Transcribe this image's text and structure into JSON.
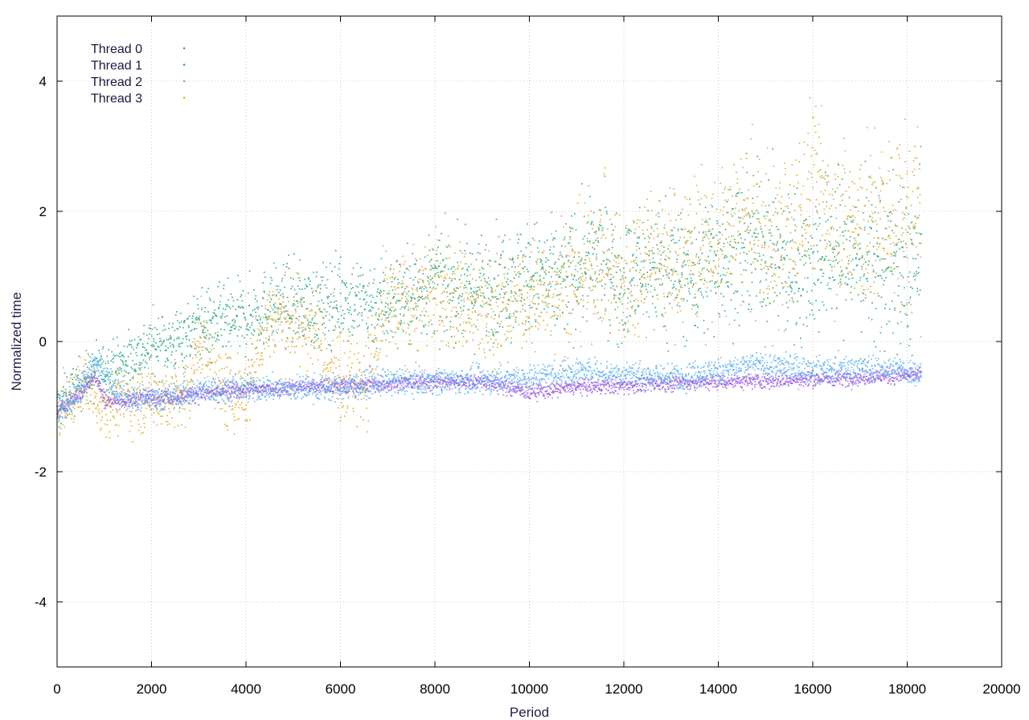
{
  "chart_data": {
    "type": "scatter",
    "title": "",
    "xlabel": "Period",
    "ylabel": "Normalized time",
    "xlim": [
      0,
      20000
    ],
    "ylim": [
      -5,
      5
    ],
    "x_ticks": [
      0,
      2000,
      4000,
      6000,
      8000,
      10000,
      12000,
      14000,
      16000,
      18000,
      20000
    ],
    "y_ticks": [
      -4,
      -2,
      0,
      2,
      4
    ],
    "grid": true,
    "legend_position": "top-left",
    "x_extent": [
      0,
      18300
    ],
    "series": [
      {
        "name": "Thread 0",
        "color": "#9a58e0",
        "points": [
          [
            0,
            -1.1
          ],
          [
            200,
            -0.95
          ],
          [
            500,
            -0.8
          ],
          [
            800,
            -0.5
          ],
          [
            1000,
            -0.9
          ],
          [
            1500,
            -0.9
          ],
          [
            2000,
            -0.85
          ],
          [
            2500,
            -0.85
          ],
          [
            3000,
            -0.8
          ],
          [
            4000,
            -0.75
          ],
          [
            5000,
            -0.7
          ],
          [
            6000,
            -0.68
          ],
          [
            7000,
            -0.65
          ],
          [
            8000,
            -0.62
          ],
          [
            9000,
            -0.62
          ],
          [
            10000,
            -0.78
          ],
          [
            11000,
            -0.7
          ],
          [
            12000,
            -0.68
          ],
          [
            13000,
            -0.64
          ],
          [
            14000,
            -0.62
          ],
          [
            15000,
            -0.6
          ],
          [
            16000,
            -0.58
          ],
          [
            17000,
            -0.55
          ],
          [
            18000,
            -0.52
          ],
          [
            18300,
            -0.5
          ]
        ]
      },
      {
        "name": "Thread 1",
        "color": "#1aa07a",
        "points": [
          [
            0,
            -1.05
          ],
          [
            400,
            -0.7
          ],
          [
            800,
            -0.45
          ],
          [
            1200,
            -0.4
          ],
          [
            1600,
            -0.25
          ],
          [
            2000,
            -0.05
          ],
          [
            2500,
            0.0
          ],
          [
            3000,
            0.25
          ],
          [
            3500,
            0.3
          ],
          [
            4000,
            0.35
          ],
          [
            4500,
            0.55
          ],
          [
            5000,
            0.6
          ],
          [
            5500,
            0.5
          ],
          [
            6000,
            0.7
          ],
          [
            6500,
            0.6
          ],
          [
            7000,
            0.6
          ],
          [
            7500,
            0.7
          ],
          [
            8000,
            0.9
          ],
          [
            8500,
            0.8
          ],
          [
            9000,
            0.8
          ],
          [
            9500,
            0.95
          ],
          [
            10000,
            1.0
          ],
          [
            10500,
            0.9
          ],
          [
            11000,
            1.1
          ],
          [
            11500,
            1.3
          ],
          [
            12000,
            0.9
          ],
          [
            12500,
            1.2
          ],
          [
            13000,
            1.1
          ],
          [
            13500,
            1.0
          ],
          [
            14000,
            1.3
          ],
          [
            14500,
            1.4
          ],
          [
            15000,
            1.5
          ],
          [
            15500,
            1.1
          ],
          [
            16000,
            1.2
          ],
          [
            16500,
            1.4
          ],
          [
            17000,
            1.3
          ],
          [
            17500,
            1.2
          ],
          [
            18000,
            1.0
          ],
          [
            18300,
            1.3
          ]
        ]
      },
      {
        "name": "Thread 2",
        "color": "#58aef0",
        "points": [
          [
            0,
            -1.1
          ],
          [
            300,
            -0.9
          ],
          [
            600,
            -0.6
          ],
          [
            800,
            -0.3
          ],
          [
            1000,
            -0.5
          ],
          [
            1500,
            -0.9
          ],
          [
            2000,
            -0.88
          ],
          [
            2500,
            -0.85
          ],
          [
            3000,
            -0.75
          ],
          [
            4000,
            -0.72
          ],
          [
            5000,
            -0.72
          ],
          [
            6000,
            -0.72
          ],
          [
            7000,
            -0.62
          ],
          [
            8000,
            -0.6
          ],
          [
            9000,
            -0.6
          ],
          [
            10000,
            -0.55
          ],
          [
            11000,
            -0.45
          ],
          [
            12000,
            -0.5
          ],
          [
            13000,
            -0.55
          ],
          [
            14000,
            -0.45
          ],
          [
            15000,
            -0.35
          ],
          [
            16000,
            -0.45
          ],
          [
            17000,
            -0.4
          ],
          [
            18000,
            -0.45
          ],
          [
            18300,
            -0.5
          ]
        ]
      },
      {
        "name": "Thread 3",
        "color": "#d9a520",
        "points": [
          [
            0,
            -1.1
          ],
          [
            300,
            -0.9
          ],
          [
            600,
            -0.6
          ],
          [
            900,
            -0.95
          ],
          [
            1500,
            -0.9
          ],
          [
            2000,
            -0.85
          ],
          [
            2800,
            -0.85
          ],
          [
            3000,
            0.1
          ],
          [
            3500,
            -0.75
          ],
          [
            4000,
            -0.8
          ],
          [
            4500,
            0.4
          ],
          [
            5000,
            0.3
          ],
          [
            5500,
            0.2
          ],
          [
            6000,
            -0.5
          ],
          [
            6500,
            -0.6
          ],
          [
            7000,
            0.5
          ],
          [
            7500,
            0.6
          ],
          [
            8000,
            0.8
          ],
          [
            8500,
            0.7
          ],
          [
            9000,
            0.4
          ],
          [
            9500,
            0.5
          ],
          [
            10000,
            0.6
          ],
          [
            10500,
            0.9
          ],
          [
            11000,
            1.0
          ],
          [
            11500,
            1.3
          ],
          [
            12000,
            0.8
          ],
          [
            12500,
            1.4
          ],
          [
            13000,
            1.2
          ],
          [
            13500,
            1.5
          ],
          [
            14000,
            1.4
          ],
          [
            14500,
            1.8
          ],
          [
            15000,
            1.6
          ],
          [
            15500,
            1.5
          ],
          [
            16000,
            2.5
          ],
          [
            16500,
            1.9
          ],
          [
            17000,
            1.7
          ],
          [
            17500,
            1.8
          ],
          [
            18000,
            2.0
          ],
          [
            18300,
            1.8
          ]
        ]
      }
    ]
  }
}
